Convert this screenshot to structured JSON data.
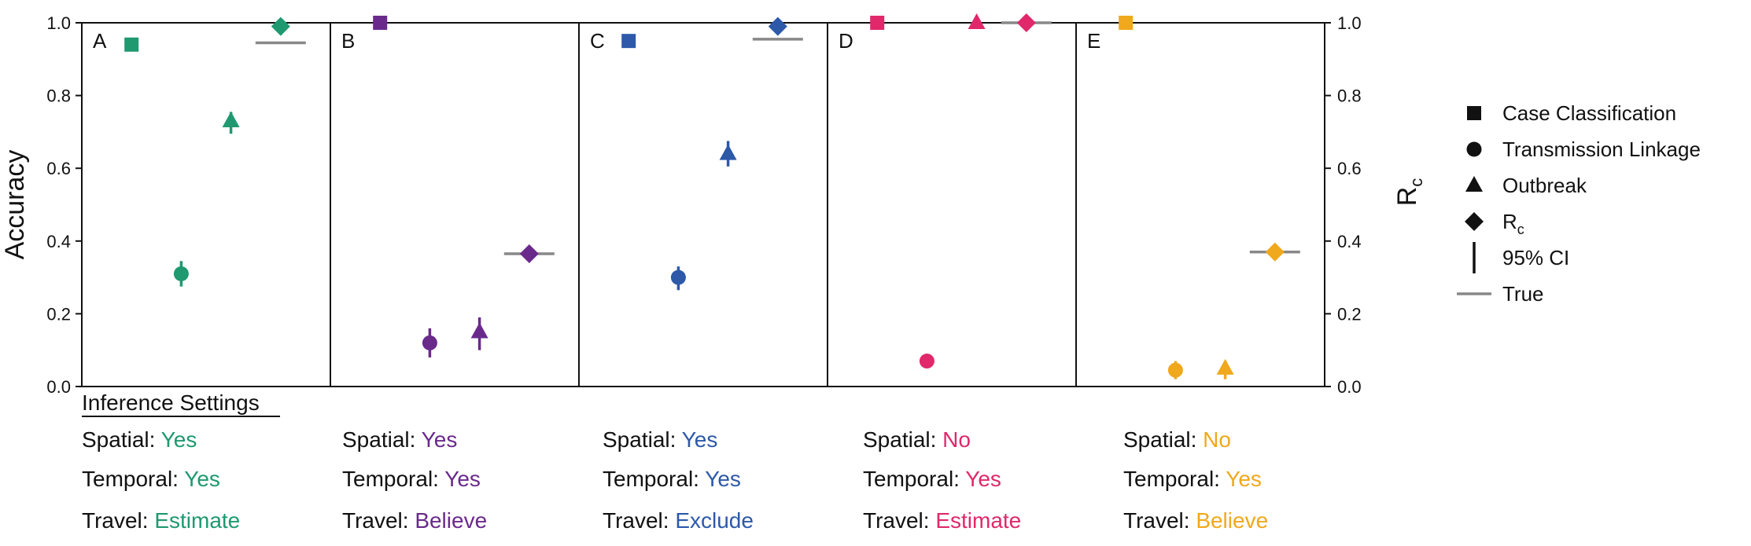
{
  "chart_data": {
    "type": "scatter",
    "ylabel": "Accuracy",
    "y2label": "R",
    "y2label_sub": "c",
    "ylim": [
      0,
      1
    ],
    "yticks": [
      "0.0",
      "0.2",
      "0.4",
      "0.6",
      "0.8",
      "1.0"
    ],
    "categories": [
      "Case Classification",
      "Transmission Linkage",
      "Outbreak",
      "Rc"
    ],
    "legend": {
      "placement": "right",
      "items": [
        {
          "marker": "square",
          "label": "Case Classification"
        },
        {
          "marker": "circle",
          "label": "Transmission Linkage"
        },
        {
          "marker": "triangle",
          "label": "Outbreak"
        },
        {
          "marker": "diamond",
          "label": "R",
          "sub": "c"
        },
        {
          "marker": "vline",
          "label": "95% CI"
        },
        {
          "marker": "hline",
          "label": "True"
        }
      ]
    },
    "panels": [
      {
        "label": "A",
        "color": "#1e9970",
        "settings": {
          "spatial": "Yes",
          "temporal": "Yes",
          "travel": "Estimate"
        },
        "points": [
          {
            "metric": "Case Classification",
            "marker": "square",
            "y": 0.94
          },
          {
            "metric": "Transmission Linkage",
            "marker": "circle",
            "y": 0.31,
            "ci": [
              0.275,
              0.345
            ]
          },
          {
            "metric": "Outbreak",
            "marker": "triangle",
            "y": 0.73,
            "ci": [
              0.695,
              0.755
            ]
          },
          {
            "metric": "Rc",
            "marker": "diamond",
            "y": 0.99,
            "true": 0.945
          }
        ]
      },
      {
        "label": "B",
        "color": "#6a2a8c",
        "settings": {
          "spatial": "Yes",
          "temporal": "Yes",
          "travel": "Believe"
        },
        "points": [
          {
            "metric": "Case Classification",
            "marker": "square",
            "y": 1.0
          },
          {
            "metric": "Transmission Linkage",
            "marker": "circle",
            "y": 0.12,
            "ci": [
              0.08,
              0.16
            ]
          },
          {
            "metric": "Outbreak",
            "marker": "triangle",
            "y": 0.15,
            "ci": [
              0.1,
              0.19
            ]
          },
          {
            "metric": "Rc",
            "marker": "diamond",
            "y": 0.365,
            "true": 0.365
          }
        ]
      },
      {
        "label": "C",
        "color": "#2d59a8",
        "settings": {
          "spatial": "Yes",
          "temporal": "Yes",
          "travel": "Exclude"
        },
        "points": [
          {
            "metric": "Case Classification",
            "marker": "square",
            "y": 0.95
          },
          {
            "metric": "Transmission Linkage",
            "marker": "circle",
            "y": 0.3,
            "ci": [
              0.265,
              0.33
            ]
          },
          {
            "metric": "Outbreak",
            "marker": "triangle",
            "y": 0.64,
            "ci": [
              0.605,
              0.675
            ]
          },
          {
            "metric": "Rc",
            "marker": "diamond",
            "y": 0.99,
            "true": 0.955
          }
        ]
      },
      {
        "label": "D",
        "color": "#e0286b",
        "settings": {
          "spatial": "No",
          "temporal": "Yes",
          "travel": "Estimate"
        },
        "points": [
          {
            "metric": "Case Classification",
            "marker": "square",
            "y": 1.0
          },
          {
            "metric": "Transmission Linkage",
            "marker": "circle",
            "y": 0.07
          },
          {
            "metric": "Outbreak",
            "marker": "triangle",
            "y": 1.0
          },
          {
            "metric": "Rc",
            "marker": "diamond",
            "y": 1.0,
            "true": 1.0
          }
        ]
      },
      {
        "label": "E",
        "color": "#f0a81c",
        "settings": {
          "spatial": "No",
          "temporal": "Yes",
          "travel": "Believe"
        },
        "points": [
          {
            "metric": "Case Classification",
            "marker": "square",
            "y": 1.0
          },
          {
            "metric": "Transmission Linkage",
            "marker": "circle",
            "y": 0.045,
            "ci": [
              0.02,
              0.07
            ]
          },
          {
            "metric": "Outbreak",
            "marker": "triangle",
            "y": 0.05,
            "ci": [
              0.02,
              0.07
            ]
          },
          {
            "metric": "Rc",
            "marker": "diamond",
            "y": 0.37,
            "true": 0.37
          }
        ]
      }
    ]
  },
  "settings_block": {
    "heading": "Inference Settings",
    "spatial_label": "Spatial: ",
    "temporal_label": "Temporal: ",
    "travel_label": "Travel: "
  }
}
